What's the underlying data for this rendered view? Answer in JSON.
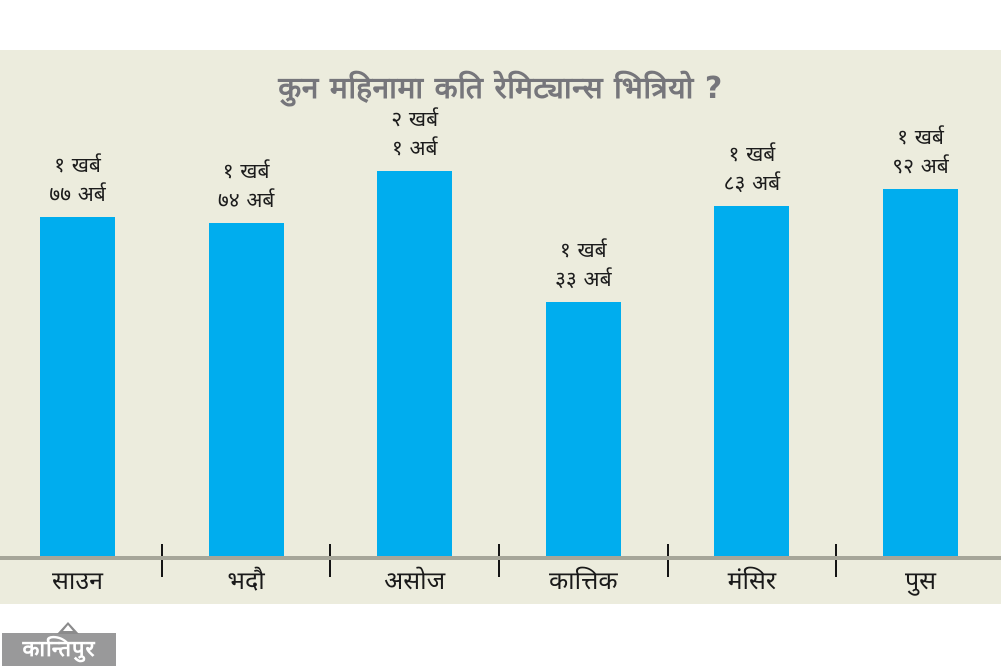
{
  "page": {
    "background": "#FFFFFF"
  },
  "panel": {
    "background": "#ECECDD"
  },
  "title": "कुन महिनामा कति रेमिट्यान्स भित्रियो ?",
  "chart_data": {
    "type": "bar",
    "title": "कुन महिनामा कति रेमिट्यान्स भित्रियो ?",
    "categories": [
      "साउन",
      "भदौ",
      "असोज",
      "कात्तिक",
      "मंसिर",
      "पुस"
    ],
    "values": [
      177,
      174,
      201,
      133,
      183,
      192
    ],
    "values_unit": "अर्ब",
    "value_labels": [
      [
        "१ खर्ब",
        "७७ अर्ब"
      ],
      [
        "१ खर्ब",
        "७४ अर्ब"
      ],
      [
        "२ खर्ब",
        "१ अर्ब"
      ],
      [
        "१ खर्ब",
        "३३ अर्ब"
      ],
      [
        "१ खर्ब",
        "८३ अर्ब"
      ],
      [
        "१ खर्ब",
        "९२ अर्ब"
      ]
    ],
    "bar_color": "#00ADEE",
    "xlabel": "",
    "ylabel": "",
    "ylim": [
      0,
      230
    ],
    "grid": false,
    "legend": false
  },
  "colors": {
    "title_text": "#76767B",
    "label_text": "#1C1C1C",
    "axis_line": "#A6A699",
    "tick": "#151515"
  },
  "logo": {
    "text": "कान्तिपुर",
    "background": "#99999A",
    "text_color": "#FFFFFF"
  }
}
